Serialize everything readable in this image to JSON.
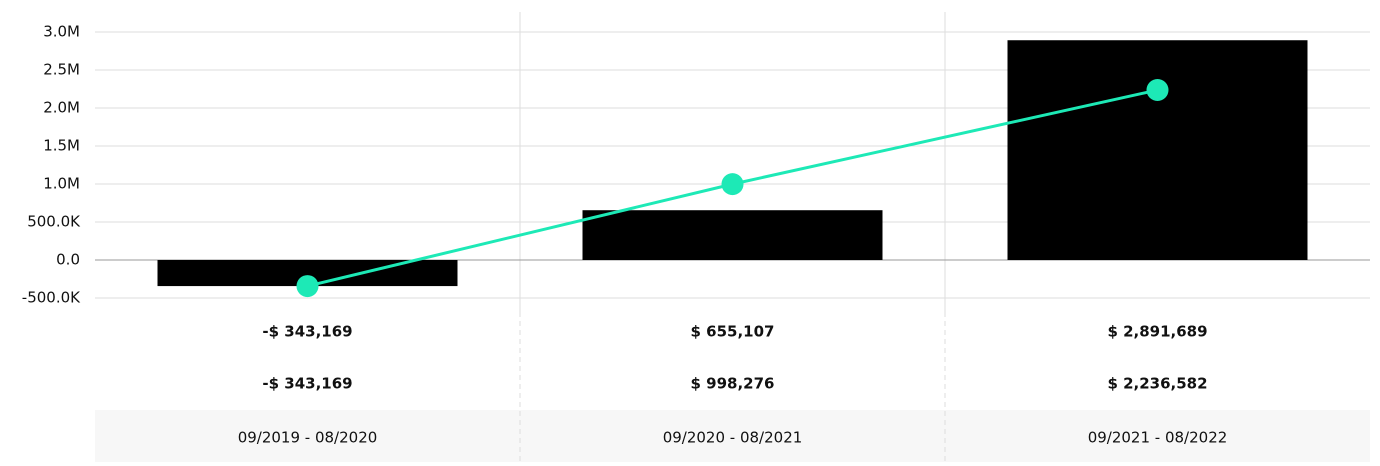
{
  "chart_data": {
    "type": "combo",
    "categories": [
      "09/2019 - 08/2020",
      "09/2020 - 08/2021",
      "09/2021 - 08/2022"
    ],
    "series": [
      {
        "type": "bar",
        "color": "#000000",
        "values": [
          -343169,
          655107,
          2891689
        ],
        "value_labels": [
          "-$ 343,169",
          "$ 655,107",
          "$ 2,891,689"
        ]
      },
      {
        "type": "line",
        "color": "#1de9b6",
        "values": [
          -343169,
          998276,
          2236582
        ],
        "value_labels": [
          "-$ 343,169",
          "$ 998,276",
          "$ 2,236,582"
        ]
      }
    ],
    "ylim": [
      -500000,
      3000000
    ],
    "yticks": [
      {
        "value": -500000,
        "label": "-500.0K"
      },
      {
        "value": 0,
        "label": "0.0"
      },
      {
        "value": 500000,
        "label": "500.0K"
      },
      {
        "value": 1000000,
        "label": "1.0M"
      },
      {
        "value": 1500000,
        "label": "1.5M"
      },
      {
        "value": 2000000,
        "label": "2.0M"
      },
      {
        "value": 2500000,
        "label": "2.5M"
      },
      {
        "value": 3000000,
        "label": "3.0M"
      }
    ],
    "grid": true
  }
}
